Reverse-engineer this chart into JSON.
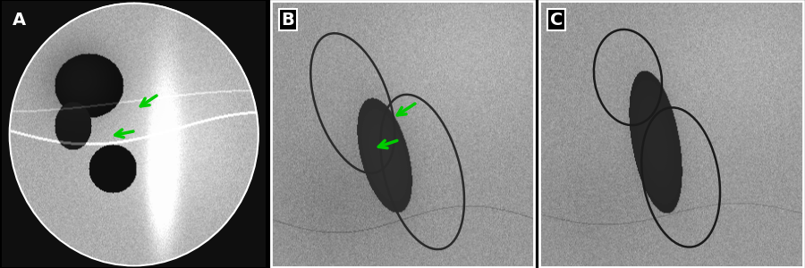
{
  "background_color": "#000000",
  "border_color": "#ffffff",
  "panel_labels": [
    "A",
    "B",
    "C"
  ],
  "label_color": "#ffffff",
  "label_fontsize": 14,
  "label_fontweight": "bold",
  "arrow_color": "#00cc00",
  "panel_A": {
    "bg_gray": 0.65
  },
  "panel_B": {
    "bg_gray": 0.62
  },
  "panel_C": {
    "bg_gray": 0.62
  }
}
